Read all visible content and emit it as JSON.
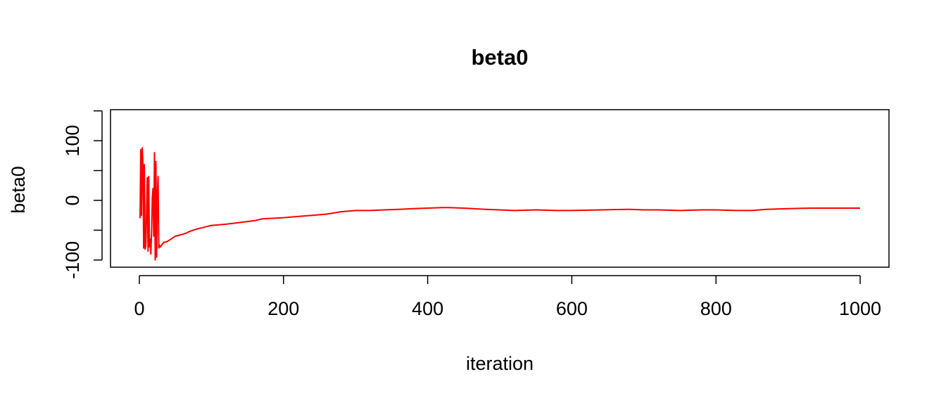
{
  "chart_data": {
    "type": "line",
    "title": "beta0",
    "xlabel": "iteration",
    "ylabel": "beta0",
    "xlim": [
      -40,
      1040
    ],
    "ylim": [
      -112,
      152
    ],
    "x_ticks": [
      0,
      200,
      400,
      600,
      800,
      1000
    ],
    "x_tick_labels": [
      "0",
      "200",
      "400",
      "600",
      "800",
      "1000"
    ],
    "y_ticks": [
      -100,
      -50,
      0,
      50,
      100,
      150
    ],
    "y_tick_labels": [
      "-100",
      "",
      "0",
      "",
      "100",
      ""
    ],
    "grid": false,
    "legend": "none",
    "series": [
      {
        "color": "#ff0000",
        "x": [
          1,
          2,
          3,
          4,
          5,
          6,
          7,
          8,
          9,
          10,
          11,
          12,
          13,
          14,
          15,
          16,
          17,
          18,
          19,
          20,
          21,
          22,
          23,
          24,
          25,
          26,
          27,
          28,
          29,
          30,
          31,
          32,
          33,
          34,
          35,
          36,
          40,
          45,
          50,
          60,
          65,
          70,
          80,
          90,
          100,
          120,
          140,
          160,
          170,
          200,
          220,
          240,
          260,
          280,
          290,
          300,
          320,
          340,
          360,
          380,
          400,
          420,
          430,
          450,
          480,
          500,
          520,
          550,
          580,
          600,
          640,
          680,
          700,
          720,
          750,
          780,
          800,
          830,
          850,
          870,
          900,
          930,
          950,
          970,
          1000
        ],
        "y": [
          -30,
          85,
          -25,
          88,
          60,
          -80,
          60,
          -82,
          -75,
          -20,
          38,
          -85,
          40,
          -78,
          -65,
          -90,
          -50,
          5,
          20,
          -60,
          80,
          -100,
          65,
          -95,
          10,
          40,
          -80,
          -75,
          -78,
          -77,
          -75,
          -73,
          -72,
          -70,
          -70,
          -70,
          -68,
          -64,
          -60,
          -57,
          -55,
          -52,
          -48,
          -45,
          -42,
          -40,
          -37,
          -34,
          -31,
          -29,
          -27,
          -25,
          -23,
          -19,
          -18,
          -17,
          -17,
          -16,
          -15,
          -14,
          -13,
          -12,
          -12,
          -13,
          -15,
          -16,
          -17,
          -16,
          -17,
          -17,
          -16,
          -15,
          -16,
          -16,
          -17,
          -16,
          -16,
          -17,
          -17,
          -15,
          -14,
          -13,
          -13,
          -13,
          -13
        ]
      }
    ]
  }
}
